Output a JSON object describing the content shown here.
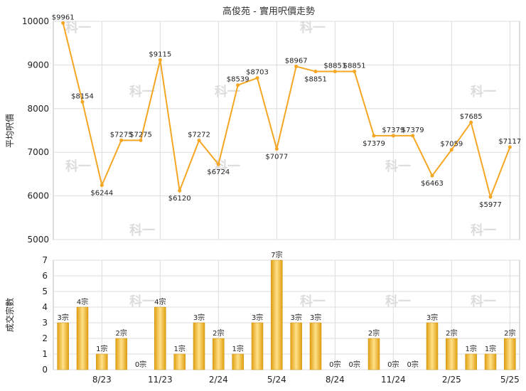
{
  "chart_data": [
    {
      "type": "line",
      "title": "高俊苑 - 實用呎價走勢",
      "ylabel": "平均呎價",
      "ylim": [
        5000,
        10000
      ],
      "yticks": [
        5000,
        6000,
        7000,
        8000,
        9000,
        10000
      ],
      "label_prefix": "$",
      "series_color": "#f5a623",
      "values": [
        9961,
        8154,
        6244,
        7275,
        7275,
        9115,
        6120,
        7272,
        6724,
        8539,
        8703,
        7077,
        8967,
        8851,
        8851,
        8851,
        7379,
        7379,
        7379,
        6463,
        7059,
        7685,
        5977,
        7117
      ],
      "x_tick_labels": [
        "8/23",
        "11/23",
        "2/24",
        "5/24",
        "8/24",
        "11/24",
        "2/25",
        "5/25"
      ],
      "x_tick_index": [
        2,
        5,
        8,
        11,
        14,
        17,
        20,
        23
      ],
      "grid": true
    },
    {
      "type": "bar",
      "ylabel": "成交宗數",
      "ylim": [
        0,
        7
      ],
      "yticks": [
        0,
        1,
        2,
        3,
        4,
        5,
        6,
        7
      ],
      "label_suffix": "宗",
      "bar_color": "#f0b020",
      "values": [
        3,
        4,
        1,
        2,
        0,
        4,
        1,
        3,
        2,
        1,
        3,
        7,
        3,
        3,
        0,
        0,
        2,
        0,
        0,
        3,
        2,
        1,
        1,
        2
      ],
      "x_tick_labels": [
        "8/23",
        "11/23",
        "2/24",
        "5/24",
        "8/24",
        "11/24",
        "2/25",
        "5/25"
      ],
      "x_tick_index": [
        2,
        5,
        8,
        11,
        14,
        17,
        20,
        23
      ],
      "grid": true
    }
  ],
  "watermark": "科一"
}
